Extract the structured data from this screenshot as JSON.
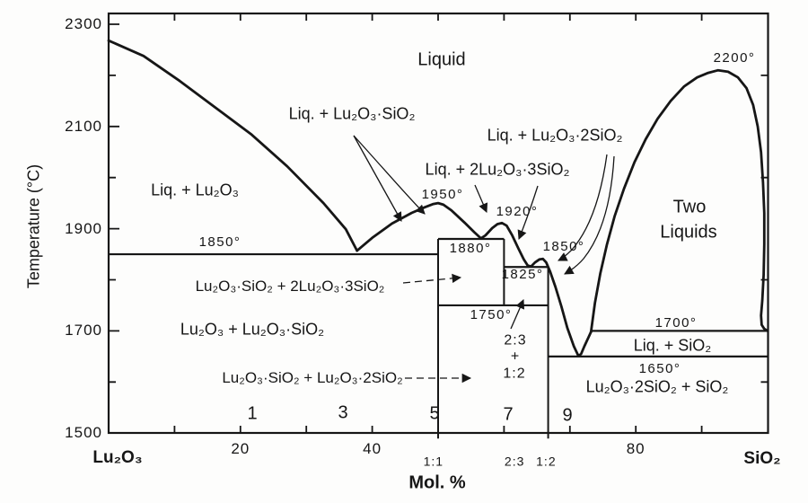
{
  "figure": {
    "kind": "phase-diagram",
    "system": "Lu₂O₃ – SiO₂"
  },
  "axes": {
    "x": {
      "title": "Mol. %",
      "end_left": "Lu₂O₃",
      "end_right": "SiO₂",
      "tick_labels": [
        {
          "text": "20",
          "mol": 20
        },
        {
          "text": "40",
          "mol": 40
        },
        {
          "text": "80",
          "mol": 80
        }
      ],
      "ratio_tick_labels": [
        {
          "text": "1:1",
          "mol": 49.3
        },
        {
          "text": "2:3",
          "mol": 61.6
        },
        {
          "text": "1:2",
          "mol": 66.4
        }
      ],
      "minor_ticks_mol": [
        10,
        20,
        30,
        40,
        50,
        60,
        70,
        80,
        90
      ]
    },
    "y": {
      "title": "Temperature (°C)",
      "major_tick_labels": [
        {
          "text": "1500",
          "T": 1500
        },
        {
          "text": "1700",
          "T": 1700
        },
        {
          "text": "1900",
          "T": 1900
        },
        {
          "text": "2100",
          "T": 2100
        },
        {
          "text": "2300",
          "T": 2300
        }
      ],
      "minor_ticks_T": [
        1600,
        1800,
        2000,
        2200
      ]
    }
  },
  "chart_data": {
    "type": "line",
    "title": "Lu₂O₃–SiO₂ phase diagram",
    "xlabel": "Mol. %",
    "ylabel": "Temperature (°C)",
    "xlim": [
      0,
      100
    ],
    "ylim": [
      1500,
      2300
    ],
    "grid": false,
    "compounds": [
      {
        "ratio": "1:1",
        "formula": "Lu₂O₃·SiO₂",
        "mol_pct_SiO2": 50
      },
      {
        "ratio": "2:3",
        "formula": "2Lu₂O₃·3SiO₂",
        "mol_pct_SiO2": 60
      },
      {
        "ratio": "1:2",
        "formula": "Lu₂O₃·2SiO₂",
        "mol_pct_SiO2": 66.7
      }
    ],
    "labeled_temperatures_C": [
      2200,
      1950,
      1920,
      1880,
      1850,
      1825,
      1750,
      1700,
      1650
    ],
    "curves": [
      {
        "name": "liquidus-Lu2O3-side",
        "width": 2.8,
        "points": [
          [
            0,
            2268
          ],
          [
            5.3,
            2238
          ],
          [
            10.8,
            2189
          ],
          [
            16.2,
            2137
          ],
          [
            21.7,
            2084
          ],
          [
            27.1,
            2022
          ],
          [
            32.6,
            1950
          ],
          [
            36,
            1899
          ],
          [
            37.7,
            1857
          ]
        ]
      },
      {
        "name": "liquidus-central",
        "width": 2.8,
        "points": [
          [
            37.7,
            1857
          ],
          [
            40,
            1882
          ],
          [
            43,
            1910
          ],
          [
            46,
            1931
          ],
          [
            48,
            1942
          ],
          [
            49.2,
            1948
          ],
          [
            50,
            1950
          ],
          [
            50.8,
            1947
          ],
          [
            52,
            1936
          ],
          [
            54,
            1912
          ],
          [
            55.5,
            1893
          ],
          [
            56.5,
            1881
          ],
          [
            57.2,
            1887
          ],
          [
            58.2,
            1901
          ],
          [
            59,
            1909
          ],
          [
            59.7,
            1911
          ],
          [
            60.4,
            1906
          ],
          [
            61.2,
            1888
          ],
          [
            62.2,
            1861
          ],
          [
            63,
            1840
          ],
          [
            63.6,
            1828
          ],
          [
            64.1,
            1826
          ],
          [
            64.7,
            1834
          ],
          [
            65.4,
            1840
          ],
          [
            65.9,
            1841
          ],
          [
            66.4,
            1834
          ],
          [
            67,
            1816
          ],
          [
            67.8,
            1786
          ],
          [
            68.7,
            1748
          ],
          [
            69.6,
            1706
          ],
          [
            70.6,
            1670
          ],
          [
            71.3,
            1651
          ],
          [
            71.7,
            1655
          ],
          [
            72.2,
            1670
          ],
          [
            72.8,
            1687
          ],
          [
            73.2,
            1698
          ]
        ]
      },
      {
        "name": "two-liquid-dome",
        "width": 2.8,
        "points": [
          [
            73.2,
            1698
          ],
          [
            73.8,
            1755
          ],
          [
            74.6,
            1812
          ],
          [
            75.6,
            1868
          ],
          [
            76.8,
            1925
          ],
          [
            78.2,
            1978
          ],
          [
            79.8,
            2030
          ],
          [
            81.5,
            2075
          ],
          [
            83.3,
            2115
          ],
          [
            85.3,
            2150
          ],
          [
            87.3,
            2178
          ],
          [
            89.3,
            2196
          ],
          [
            91,
            2205
          ],
          [
            92.5,
            2210
          ],
          [
            94,
            2207
          ],
          [
            95.5,
            2196
          ],
          [
            96.8,
            2175
          ],
          [
            97.8,
            2142
          ],
          [
            98.5,
            2100
          ],
          [
            99,
            2050
          ],
          [
            99.3,
            1990
          ],
          [
            99.5,
            1930
          ],
          [
            99.5,
            1870
          ],
          [
            99.4,
            1810
          ],
          [
            99.2,
            1760
          ],
          [
            99,
            1730
          ],
          [
            99.1,
            1712
          ],
          [
            99.5,
            1704
          ],
          [
            100,
            1700
          ]
        ]
      }
    ],
    "isotherms": [
      {
        "T": 1850,
        "mol_from": 0,
        "mol_to": 50,
        "label": "1850°"
      },
      {
        "T": 1880,
        "mol_from": 50,
        "mol_to": 60,
        "label": "1880°"
      },
      {
        "T": 1825,
        "mol_from": 60,
        "mol_to": 66.7,
        "label": "1825°"
      },
      {
        "T": 1750,
        "mol_from": 50,
        "mol_to": 66.7,
        "label": "1750°"
      },
      {
        "T": 1700,
        "mol_from": 73.2,
        "mol_to": 100,
        "label": "1700°"
      },
      {
        "T": 1650,
        "mol_from": 66.7,
        "mol_to": 100,
        "label": "1650°"
      }
    ],
    "compound_lines": [
      {
        "mol": 50,
        "T_from": 1880,
        "T_to": 1500
      },
      {
        "mol": 60,
        "T_from": 1880,
        "T_to": 1750
      },
      {
        "mol": 66.7,
        "T_from": 1825,
        "T_to": 1500
      }
    ]
  },
  "labels": {
    "liquid": "Liquid",
    "liq_lu2o3": "Liq. + Lu₂O₃",
    "liq_ls": "Liq. + Lu₂O₃·SiO₂",
    "liq_l2s": "Liq. + Lu₂O₃·2SiO₂",
    "liq_2l3s": "Liq. + 2Lu₂O₃·3SiO₂",
    "two_liquids_line1": "Two",
    "two_liquids_line2": "Liquids",
    "liq_sio2": "Liq. + SiO₂",
    "region_ls_2l3s": "Lu₂O₃·SiO₂ + 2Lu₂O₃·3SiO₂",
    "region_l_ls": "Lu₂O₃ + Lu₂O₃·SiO₂",
    "region_ls_l2s": "Lu₂O₃·SiO₂ + Lu₂O₃·2SiO₂",
    "region_l2s_s": "Lu₂O₃·2SiO₂ + SiO₂",
    "region_23_12_a": "2:3",
    "region_23_12_plus": "+",
    "region_23_12_b": "1:2",
    "t1950": "1950°",
    "t1920": "1920°",
    "t1880": "1880°",
    "t1850_right": "1850°",
    "t1825": "1825°",
    "t1750": "1750°",
    "t1850_left": "1850°",
    "t2200": "2200°",
    "t1700": "1700°",
    "t1650": "1650°",
    "n1": "1",
    "n3": "3",
    "n5": "5",
    "n7": "7",
    "n9": "9"
  }
}
